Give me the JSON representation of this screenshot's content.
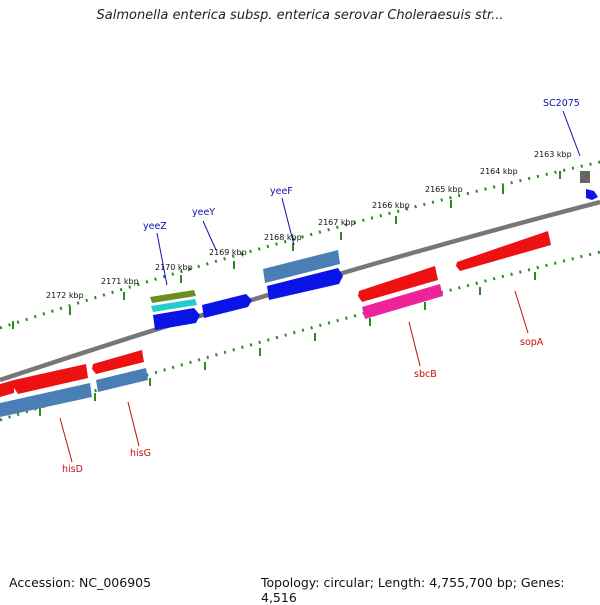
{
  "title": "Salmonella enterica subsp. enterica serovar Choleraesuis str...",
  "footer": {
    "accession": "Accession: NC_006905",
    "summary": "Topology: circular; Length: 4,755,700 bp; Genes: 4,516"
  },
  "outer_scale": {
    "color": "#2e8b22",
    "ticks": [
      "2172 kbp",
      "2171 kbp",
      "2170 kbp",
      "2169 kbp",
      "2168 kbp",
      "2167 kbp",
      "2166 kbp",
      "2165 kbp",
      "2164 kbp",
      "2163 kbp"
    ]
  },
  "genes": {
    "top_labels": [
      {
        "name": "yeeZ",
        "color": "#1010b0"
      },
      {
        "name": "yeeY",
        "color": "#1010b0"
      },
      {
        "name": "yeeF",
        "color": "#1010b0"
      },
      {
        "name": "SC2075",
        "color": "#1010b0"
      }
    ],
    "bottom_labels": [
      {
        "name": "hisD",
        "color": "#c01010"
      },
      {
        "name": "hisG",
        "color": "#c01010"
      },
      {
        "name": "sbcB",
        "color": "#c01010"
      },
      {
        "name": "sopA",
        "color": "#c01010"
      }
    ]
  },
  "colors": {
    "backbone": "#777777",
    "forward_gene": "#0a14e6",
    "forward_gene_alt": "#4a7fb5",
    "reverse_gene": "#ee1111",
    "reverse_gene_alt": "#ee2299",
    "olive": "#6b8e23",
    "cyan": "#22cccc"
  }
}
